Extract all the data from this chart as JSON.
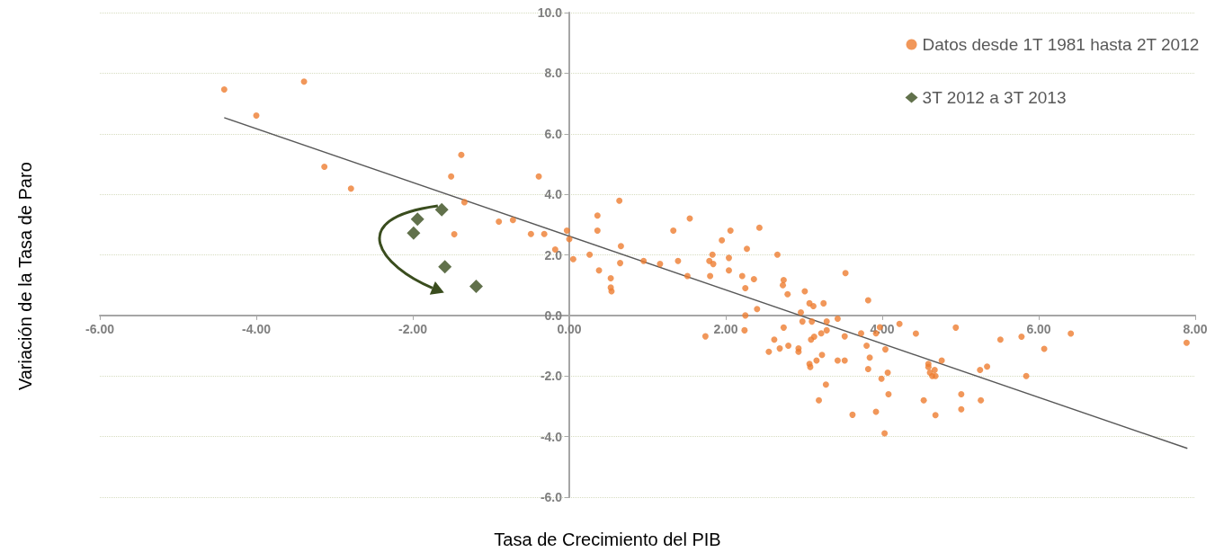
{
  "chart_data": {
    "type": "scatter",
    "xlabel": "Tasa de Crecimiento del PIB",
    "ylabel": "Variación de la Tasa de Paro",
    "xlim": [
      -6,
      8
    ],
    "ylim": [
      -6,
      10
    ],
    "xticks": [
      {
        "value": -6,
        "label": "-6.00"
      },
      {
        "value": -4,
        "label": "-4.00"
      },
      {
        "value": -2,
        "label": "-2.00"
      },
      {
        "value": 0,
        "label": "0.00"
      },
      {
        "value": 2,
        "label": "2.00"
      },
      {
        "value": 4,
        "label": "4.00"
      },
      {
        "value": 6,
        "label": "6.00"
      },
      {
        "value": 8,
        "label": "8.00"
      }
    ],
    "yticks": [
      {
        "value": -6,
        "label": "-6.0"
      },
      {
        "value": -4,
        "label": "-4.0"
      },
      {
        "value": -2,
        "label": "-2.0"
      },
      {
        "value": 0,
        "label": "0.0"
      },
      {
        "value": 2,
        "label": "2.0"
      },
      {
        "value": 4,
        "label": "4.0"
      },
      {
        "value": 6,
        "label": "6.0"
      },
      {
        "value": 8,
        "label": "8.0"
      },
      {
        "value": 10,
        "label": "10.0"
      }
    ],
    "grid": "y",
    "legend": "top right",
    "series": [
      {
        "name": "Datos desde 1T 1981 hasta 2T 2012",
        "type": "scatter",
        "marker": "circle",
        "color": "#ed7d31",
        "x": [
          -4.41,
          -4.0,
          -3.39,
          -3.13,
          -2.79,
          -1.38,
          -1.51,
          -1.34,
          -1.47,
          -0.9,
          -0.72,
          -0.39,
          -0.49,
          -0.32,
          -0.18,
          -0.03,
          0.0,
          0.05,
          0.26,
          0.36,
          0.36,
          0.38,
          0.53,
          0.53,
          0.54,
          0.64,
          0.66,
          0.65,
          0.95,
          1.16,
          1.33,
          1.39,
          1.54,
          1.51,
          1.74,
          1.79,
          1.8,
          1.83,
          1.84,
          1.95,
          2.04,
          2.04,
          2.06,
          2.21,
          2.27,
          2.25,
          2.36,
          2.43,
          2.25,
          2.4,
          2.24,
          2.55,
          2.62,
          2.69,
          2.66,
          2.74,
          2.73,
          2.79,
          2.74,
          2.8,
          2.93,
          2.93,
          2.96,
          2.98,
          3.01,
          3.07,
          3.12,
          3.1,
          3.09,
          3.13,
          3.07,
          3.08,
          3.16,
          3.23,
          3.25,
          3.22,
          3.29,
          3.29,
          3.28,
          3.19,
          3.43,
          3.43,
          3.53,
          3.52,
          3.52,
          3.62,
          3.73,
          3.82,
          3.8,
          3.84,
          3.82,
          3.92,
          3.92,
          3.97,
          3.99,
          4.22,
          4.43,
          4.94,
          4.04,
          4.07,
          4.08,
          4.03,
          4.53,
          4.59,
          4.59,
          4.61,
          4.64,
          4.67,
          4.68,
          4.68,
          4.76,
          5.01,
          5.01,
          5.25,
          5.26,
          5.34,
          5.51,
          5.78,
          5.84,
          6.07,
          6.41,
          7.89
        ],
        "values": [
          7.46,
          6.6,
          7.72,
          4.91,
          4.19,
          5.3,
          4.59,
          3.74,
          2.68,
          3.1,
          3.15,
          4.59,
          2.69,
          2.69,
          2.18,
          2.8,
          2.52,
          1.86,
          2.01,
          3.3,
          2.8,
          1.49,
          1.23,
          0.92,
          0.8,
          3.79,
          2.29,
          1.73,
          1.8,
          1.7,
          2.8,
          1.8,
          3.2,
          1.3,
          -0.69,
          1.8,
          1.3,
          2.01,
          1.7,
          2.48,
          1.9,
          1.49,
          2.8,
          1.3,
          2.2,
          0.9,
          1.2,
          2.9,
          0.0,
          0.21,
          -0.49,
          -1.2,
          -0.8,
          -1.09,
          2.01,
          1.17,
          1.0,
          0.7,
          -0.4,
          -1.0,
          -1.09,
          -1.2,
          0.1,
          -0.2,
          0.8,
          0.4,
          0.31,
          -0.2,
          -0.8,
          -0.7,
          -1.6,
          -1.7,
          -1.49,
          -1.3,
          0.4,
          -0.59,
          -0.49,
          -0.2,
          -2.28,
          -2.8,
          -0.11,
          -1.49,
          1.4,
          -0.69,
          -1.49,
          -3.28,
          -0.59,
          0.5,
          -1.0,
          -1.39,
          -1.77,
          -0.59,
          -3.18,
          -0.39,
          -2.09,
          -0.28,
          -0.6,
          -0.4,
          -1.12,
          -1.89,
          -2.6,
          -3.89,
          -2.8,
          -1.6,
          -1.7,
          -1.89,
          -2.0,
          -1.8,
          -2.0,
          -3.29,
          -1.49,
          -2.6,
          -3.1,
          -1.8,
          -2.8,
          -1.69,
          -0.8,
          -0.7,
          -2.0,
          -1.1,
          -0.6,
          -0.9
        ]
      },
      {
        "name": "3T 2012 a 3T 2013",
        "type": "scatter",
        "marker": "diamond",
        "color": "#3a4d1e",
        "x": [
          -1.63,
          -1.94,
          -1.99,
          -1.59,
          -1.19
        ],
        "values": [
          3.49,
          3.18,
          2.72,
          1.61,
          0.96
        ]
      },
      {
        "type": "line",
        "marker": "none",
        "color": "#595959",
        "x": [
          -4.41,
          7.9
        ],
        "values": [
          6.53,
          -4.39
        ]
      }
    ]
  }
}
